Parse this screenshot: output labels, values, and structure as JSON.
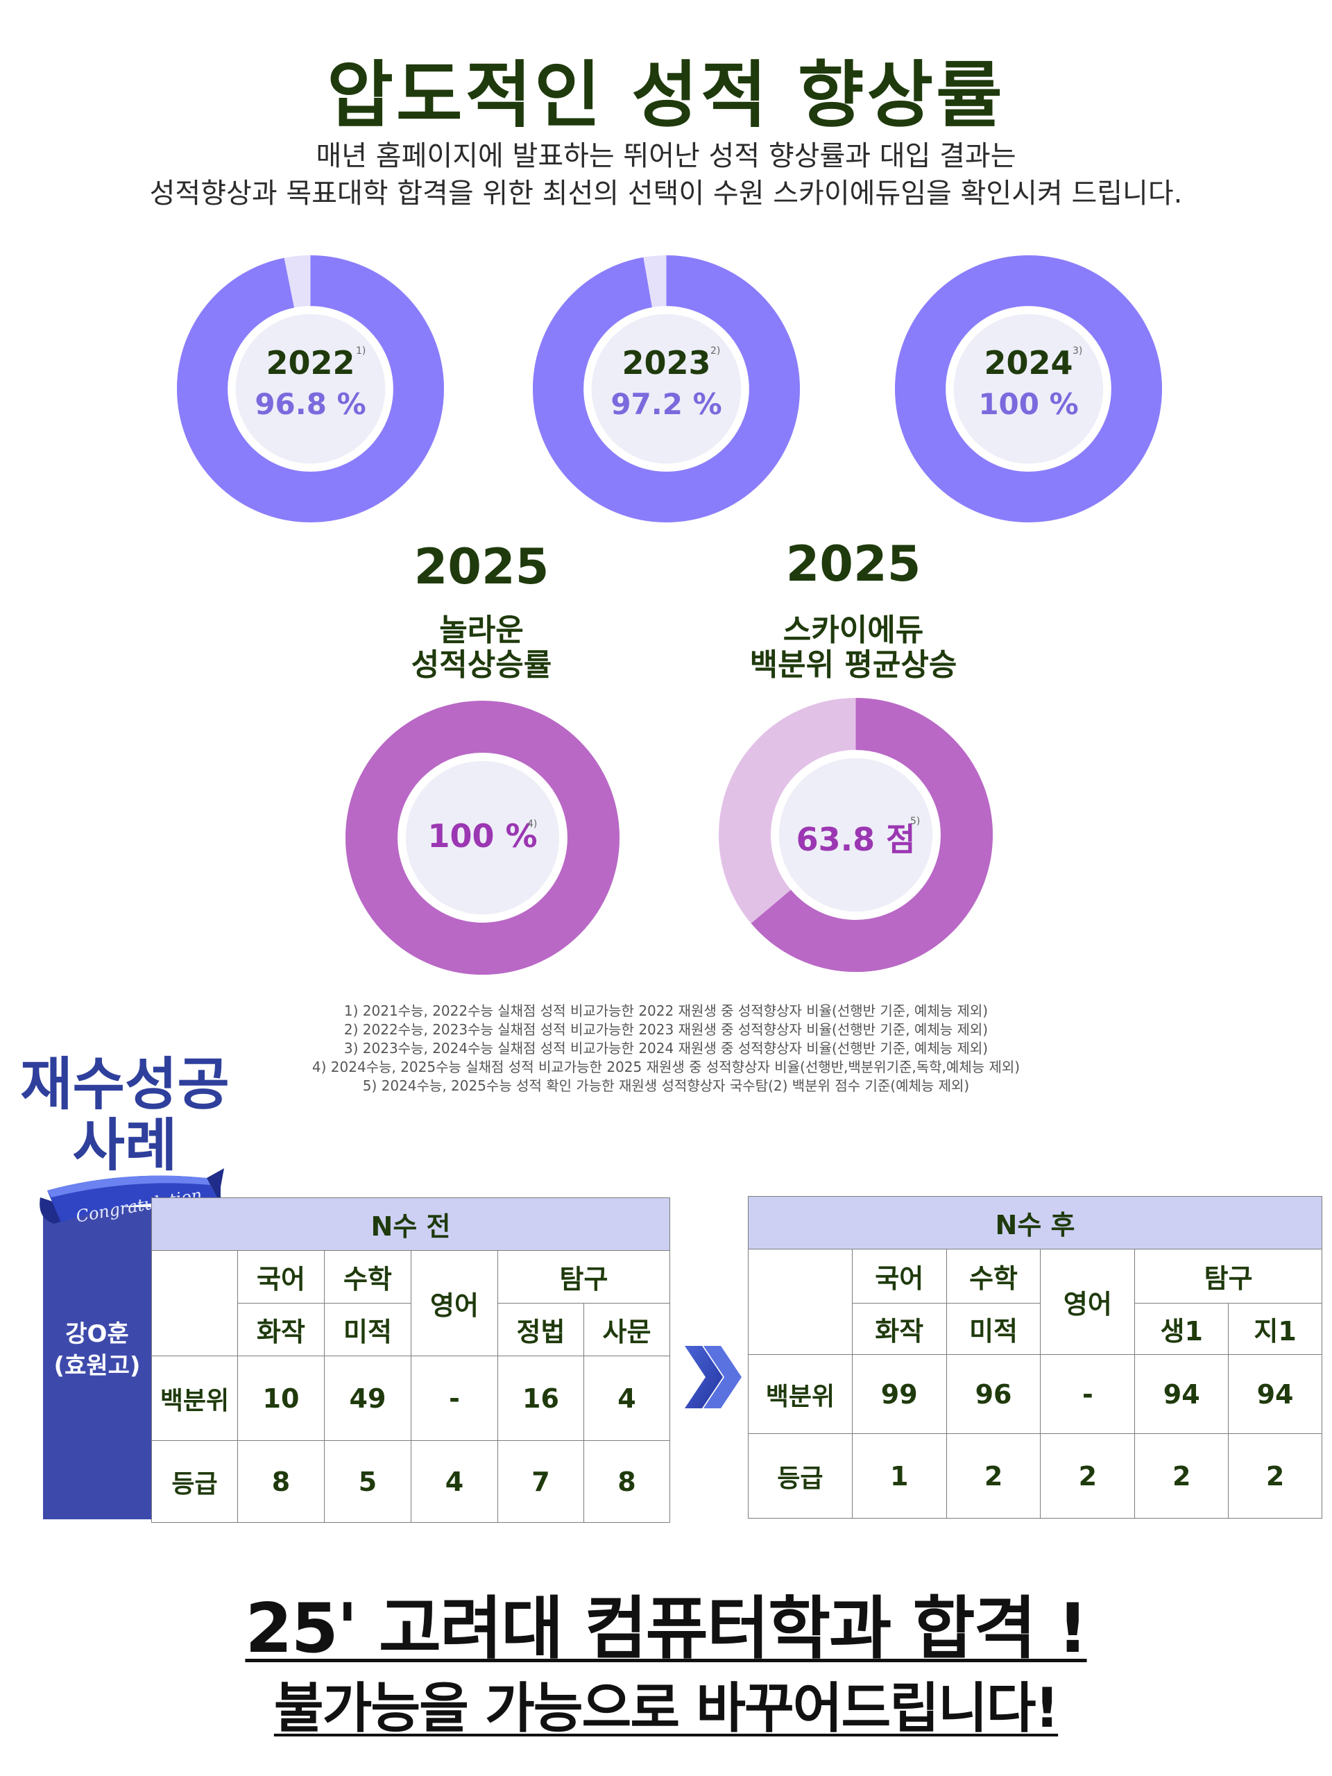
{
  "header": {
    "title": "압도적인 성적 향상률",
    "line1": "매년 홈페이지에 발표하는 뛰어난 성적 향상률과 대입 결과는",
    "line2": "성적향상과 목표대학 합격을 위한 최선의 선택이 수원 스카이에듀임을 확인시켜 드립니다."
  },
  "donuts_top": [
    {
      "year": "2022",
      "value_label": "96.8 %",
      "note": "1)",
      "fraction": 0.968
    },
    {
      "year": "2023",
      "value_label": "97.2 %",
      "note": "2)",
      "fraction": 0.972
    },
    {
      "year": "2024",
      "value_label": "100 %",
      "note": "3)",
      "fraction": 1.0
    }
  ],
  "donuts_bottom": [
    {
      "year": "2025",
      "caption1": "놀라운",
      "caption2": "성적상승률",
      "value_label": "100 %",
      "note": "4)",
      "fraction": 1.0
    },
    {
      "year": "2025",
      "caption1": "스카이에듀",
      "caption2": "백분위 평균상승",
      "value_label": "63.8 점",
      "note": "5)",
      "fraction": 0.638
    }
  ],
  "colors": {
    "ring_blue": "#8a7dfb",
    "ring_blue_rest": "#e6e1fb",
    "ring_purple": "#b968c6",
    "ring_purple_rest": "#e2c1e7",
    "inner_fill": "#eeeef8",
    "accent_navy": "#3e4aab"
  },
  "notes": [
    "1) 2021수능, 2022수능 실채점 성적 비교가능한  2022 재원생 중 성적향상자 비율(선행반 기준, 예체능 제외)",
    "2) 2022수능, 2023수능 실채점 성적 비교가능한  2023 재원생 중 성적향상자 비율(선행반 기준, 예체능 제외)",
    "3) 2023수능, 2024수능 실채점 성적 비교가능한  2024 재원생 중 성적향상자 비율(선행반 기준, 예체능 제외)",
    "4) 2024수능, 2025수능 실채점 성적 비교가능한 2025 재원생 중 성적향상자 비율(선행반,백분위기준,독학,예체능 제외)",
    "5) 2024수능, 2025수능 성적 확인 가능한 재원생 성적향상자 국수탐(2) 백분위 점수 기준(예체능 제외)"
  ],
  "case": {
    "title1": "재수성공",
    "title2": "사례",
    "ribbon_text": "Congratulation",
    "student_name": "강O훈",
    "student_school": "(효원고)"
  },
  "before": {
    "title": "N수 전",
    "subjects": [
      "국어",
      "수학",
      "영어",
      "탐구"
    ],
    "electives": [
      "화작",
      "미적",
      "정법",
      "사문"
    ],
    "row_percentile": "백분위",
    "row_grade": "등급",
    "percentile": [
      "10",
      "49",
      "-",
      "16",
      "4"
    ],
    "grade": [
      "8",
      "5",
      "4",
      "7",
      "8"
    ]
  },
  "after": {
    "title": "N수 후",
    "subjects": [
      "국어",
      "수학",
      "영어",
      "탐구"
    ],
    "electives": [
      "화작",
      "미적",
      "생1",
      "지1"
    ],
    "row_percentile": "백분위",
    "row_grade": "등급",
    "percentile": [
      "99",
      "96",
      "-",
      "94",
      "94"
    ],
    "grade": [
      "1",
      "2",
      "2",
      "2",
      "2"
    ]
  },
  "footer": {
    "line1": "25' 고려대 컴퓨터학과 합격 !",
    "line2": "불가능을 가능으로 바꾸어드립니다!"
  }
}
